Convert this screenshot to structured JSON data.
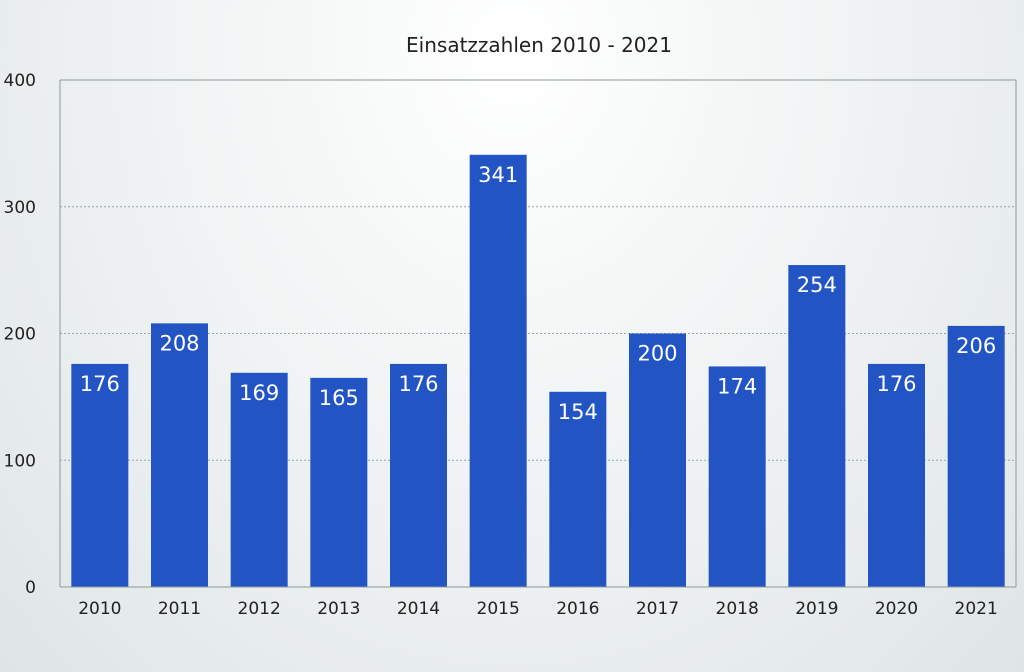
{
  "colors": {
    "bar": "#2254c4",
    "data_label": "#ffffff",
    "gridline": "#9aa6ab",
    "axis": "#8d999e",
    "text": "#222222"
  },
  "chart_data": {
    "type": "bar",
    "title": "Einsatzzahlen 2010 - 2021",
    "xlabel": "",
    "ylabel": "",
    "categories": [
      "2010",
      "2011",
      "2012",
      "2013",
      "2014",
      "2015",
      "2016",
      "2017",
      "2018",
      "2019",
      "2020",
      "2021"
    ],
    "values": [
      176,
      208,
      169,
      165,
      176,
      341,
      154,
      200,
      174,
      254,
      176,
      206
    ],
    "ylim": [
      0,
      400
    ],
    "yticks": [
      "0",
      "100",
      "200",
      "300",
      "400"
    ],
    "grid": true,
    "legend": "none",
    "data_labels": true
  }
}
